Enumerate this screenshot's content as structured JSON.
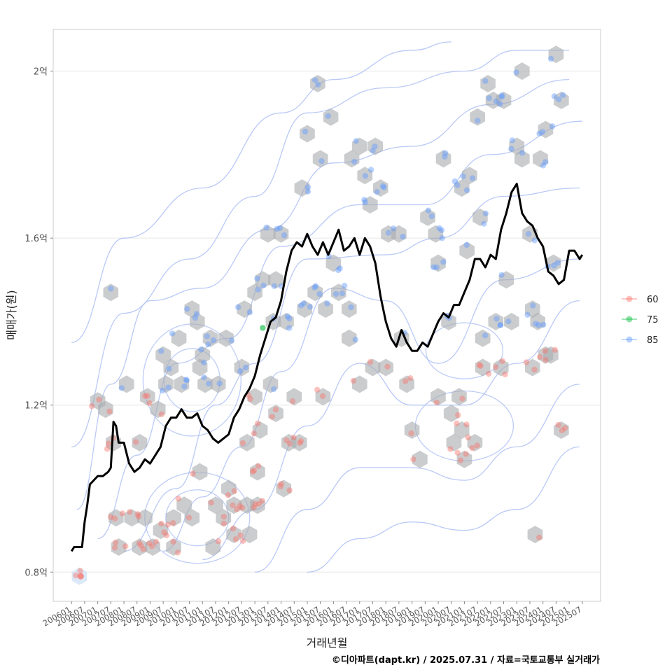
{
  "chart_data": {
    "type": "scatter",
    "title": "",
    "xlabel": "거래년월",
    "ylabel": "매매가(원)",
    "caption": "©디아파트(dapt.kr) / 2025.07.31 / 자료=국토교통부 실거래가",
    "x_range": [
      2005.3,
      2026.2
    ],
    "ylim": [
      0.73,
      2.1
    ],
    "y_ticks": [
      {
        "value": 0.8,
        "label": "0.8억"
      },
      {
        "value": 1.2,
        "label": "1.2억"
      },
      {
        "value": 1.6,
        "label": "1.6억"
      },
      {
        "value": 2.0,
        "label": "2억"
      }
    ],
    "x_ticks": [
      "200601",
      "200607",
      "200701",
      "200707",
      "200801",
      "200807",
      "200901",
      "200907",
      "201001",
      "201007",
      "201101",
      "201107",
      "201201",
      "201207",
      "201301",
      "201307",
      "201401",
      "201407",
      "201501",
      "201507",
      "201601",
      "201607",
      "201701",
      "201707",
      "201801",
      "201807",
      "201901",
      "201907",
      "202001",
      "202007",
      "202101",
      "202107",
      "202201",
      "202207",
      "202301",
      "202307",
      "202401",
      "202407",
      "202501",
      "202507"
    ],
    "legend": {
      "position": "right",
      "items": [
        {
          "label": "60",
          "color": "#F8766D"
        },
        {
          "label": "75",
          "color": "#00BA38"
        },
        {
          "label": "85",
          "color": "#619CFF"
        }
      ]
    },
    "trend_line": {
      "name": "moving average",
      "color": "#000000",
      "x": [
        2006.0,
        2006.1,
        2006.4,
        2006.5,
        2006.6,
        2006.7,
        2006.85,
        2007.0,
        2007.2,
        2007.4,
        2007.5,
        2007.6,
        2007.7,
        2007.8,
        2008.0,
        2008.2,
        2008.4,
        2008.6,
        2008.8,
        2009.0,
        2009.2,
        2009.4,
        2009.6,
        2009.8,
        2010.0,
        2010.2,
        2010.4,
        2010.6,
        2010.8,
        2011.0,
        2011.2,
        2011.4,
        2011.6,
        2011.8,
        2012.0,
        2012.2,
        2012.4,
        2012.6,
        2012.8,
        2013.0,
        2013.2,
        2013.4,
        2013.6,
        2013.8,
        2014.0,
        2014.2,
        2014.4,
        2014.6,
        2014.8,
        2015.0,
        2015.2,
        2015.4,
        2015.6,
        2015.8,
        2016.0,
        2016.2,
        2016.4,
        2016.6,
        2016.8,
        2017.0,
        2017.2,
        2017.4,
        2017.6,
        2017.8,
        2018.0,
        2018.2,
        2018.4,
        2018.6,
        2018.8,
        2019.0,
        2019.2,
        2019.4,
        2019.6,
        2019.8,
        2020.0,
        2020.2,
        2020.4,
        2020.6,
        2020.8,
        2021.0,
        2021.2,
        2021.4,
        2021.6,
        2021.8,
        2022.0,
        2022.2,
        2022.4,
        2022.6,
        2022.8,
        2023.0,
        2023.2,
        2023.4,
        2023.6,
        2023.8,
        2024.0,
        2024.2,
        2024.4,
        2024.6,
        2024.8,
        2025.0,
        2025.2,
        2025.4,
        2025.5
      ],
      "y": [
        0.85,
        0.86,
        0.86,
        0.92,
        0.96,
        1.01,
        1.02,
        1.03,
        1.03,
        1.04,
        1.05,
        1.16,
        1.15,
        1.11,
        1.11,
        1.06,
        1.04,
        1.05,
        1.07,
        1.06,
        1.08,
        1.1,
        1.15,
        1.17,
        1.17,
        1.19,
        1.17,
        1.17,
        1.18,
        1.15,
        1.14,
        1.12,
        1.11,
        1.12,
        1.13,
        1.17,
        1.19,
        1.22,
        1.24,
        1.27,
        1.32,
        1.36,
        1.4,
        1.41,
        1.45,
        1.52,
        1.57,
        1.59,
        1.58,
        1.61,
        1.58,
        1.56,
        1.59,
        1.56,
        1.59,
        1.62,
        1.57,
        1.58,
        1.6,
        1.56,
        1.6,
        1.58,
        1.54,
        1.46,
        1.4,
        1.36,
        1.34,
        1.38,
        1.35,
        1.33,
        1.33,
        1.35,
        1.34,
        1.37,
        1.4,
        1.42,
        1.41,
        1.44,
        1.44,
        1.47,
        1.5,
        1.55,
        1.55,
        1.53,
        1.56,
        1.55,
        1.62,
        1.66,
        1.71,
        1.73,
        1.66,
        1.64,
        1.63,
        1.6,
        1.58,
        1.52,
        1.51,
        1.49,
        1.5,
        1.57,
        1.57,
        1.55,
        1.56
      ]
    },
    "hexbin_centers": [
      [
        2006.3,
        0.79
      ],
      [
        2007.0,
        1.21
      ],
      [
        2007.3,
        1.19
      ],
      [
        2007.5,
        1.47
      ],
      [
        2007.6,
        1.11
      ],
      [
        2007.7,
        0.93
      ],
      [
        2007.8,
        0.86
      ],
      [
        2008.1,
        1.25
      ],
      [
        2008.3,
        0.93
      ],
      [
        2008.6,
        0.86
      ],
      [
        2008.6,
        1.11
      ],
      [
        2008.8,
        0.93
      ],
      [
        2008.9,
        1.22
      ],
      [
        2009.1,
        0.86
      ],
      [
        2009.3,
        1.19
      ],
      [
        2009.4,
        0.9
      ],
      [
        2009.5,
        1.32
      ],
      [
        2009.6,
        1.25
      ],
      [
        2009.8,
        1.29
      ],
      [
        2009.9,
        0.93
      ],
      [
        2009.9,
        0.86
      ],
      [
        2010.1,
        1.36
      ],
      [
        2010.2,
        1.25
      ],
      [
        2010.3,
        0.96
      ],
      [
        2010.6,
        1.43
      ],
      [
        2010.6,
        0.93
      ],
      [
        2010.8,
        1.4
      ],
      [
        2010.9,
        1.29
      ],
      [
        2010.9,
        1.04
      ],
      [
        2011.0,
        1.32
      ],
      [
        2011.1,
        1.25
      ],
      [
        2011.3,
        1.36
      ],
      [
        2011.4,
        0.86
      ],
      [
        2011.5,
        0.96
      ],
      [
        2011.6,
        1.25
      ],
      [
        2011.8,
        0.93
      ],
      [
        2011.9,
        1.36
      ],
      [
        2012.0,
        1.0
      ],
      [
        2012.2,
        0.96
      ],
      [
        2012.2,
        0.89
      ],
      [
        2012.5,
        1.29
      ],
      [
        2012.6,
        1.43
      ],
      [
        2012.7,
        0.96
      ],
      [
        2012.7,
        1.11
      ],
      [
        2012.8,
        0.89
      ],
      [
        2013.0,
        1.22
      ],
      [
        2013.0,
        1.47
      ],
      [
        2013.1,
        0.96
      ],
      [
        2013.1,
        1.04
      ],
      [
        2013.2,
        1.14
      ],
      [
        2013.3,
        1.5
      ],
      [
        2013.5,
        1.61
      ],
      [
        2013.6,
        1.25
      ],
      [
        2013.7,
        1.4
      ],
      [
        2013.8,
        1.18
      ],
      [
        2013.8,
        1.5
      ],
      [
        2014.0,
        1.61
      ],
      [
        2014.1,
        1.0
      ],
      [
        2014.2,
        1.4
      ],
      [
        2014.3,
        1.11
      ],
      [
        2014.5,
        1.22
      ],
      [
        2014.7,
        1.11
      ],
      [
        2014.8,
        1.72
      ],
      [
        2014.9,
        1.43
      ],
      [
        2015.0,
        1.85
      ],
      [
        2015.3,
        1.47
      ],
      [
        2015.4,
        1.97
      ],
      [
        2015.5,
        1.79
      ],
      [
        2015.6,
        1.22
      ],
      [
        2015.7,
        1.43
      ],
      [
        2015.9,
        1.89
      ],
      [
        2016.0,
        1.54
      ],
      [
        2016.2,
        1.47
      ],
      [
        2016.6,
        1.43
      ],
      [
        2016.6,
        1.36
      ],
      [
        2016.7,
        1.79
      ],
      [
        2017.0,
        1.82
      ],
      [
        2017.0,
        1.25
      ],
      [
        2017.2,
        1.75
      ],
      [
        2017.4,
        1.68
      ],
      [
        2017.5,
        1.29
      ],
      [
        2017.6,
        1.82
      ],
      [
        2017.8,
        1.72
      ],
      [
        2018.0,
        1.29
      ],
      [
        2018.1,
        1.61
      ],
      [
        2018.5,
        1.61
      ],
      [
        2018.6,
        1.36
      ],
      [
        2018.8,
        1.25
      ],
      [
        2019.0,
        1.14
      ],
      [
        2019.3,
        1.07
      ],
      [
        2019.6,
        1.65
      ],
      [
        2019.9,
        1.61
      ],
      [
        2020.0,
        1.22
      ],
      [
        2020.0,
        1.54
      ],
      [
        2020.2,
        1.79
      ],
      [
        2020.4,
        1.4
      ],
      [
        2020.5,
        1.18
      ],
      [
        2020.6,
        1.11
      ],
      [
        2020.8,
        1.22
      ],
      [
        2020.9,
        1.14
      ],
      [
        2020.9,
        1.72
      ],
      [
        2021.0,
        1.07
      ],
      [
        2021.1,
        1.57
      ],
      [
        2021.2,
        1.75
      ],
      [
        2021.4,
        1.11
      ],
      [
        2021.5,
        1.89
      ],
      [
        2021.6,
        1.65
      ],
      [
        2021.7,
        1.36
      ],
      [
        2021.7,
        1.29
      ],
      [
        2021.9,
        1.97
      ],
      [
        2022.1,
        1.93
      ],
      [
        2022.2,
        1.4
      ],
      [
        2022.4,
        1.29
      ],
      [
        2022.5,
        1.93
      ],
      [
        2022.6,
        1.5
      ],
      [
        2022.8,
        1.4
      ],
      [
        2023.0,
        1.82
      ],
      [
        2023.2,
        2.0
      ],
      [
        2023.2,
        1.79
      ],
      [
        2023.5,
        1.61
      ],
      [
        2023.6,
        1.43
      ],
      [
        2023.6,
        1.29
      ],
      [
        2023.7,
        0.89
      ],
      [
        2023.8,
        1.4
      ],
      [
        2023.9,
        1.79
      ],
      [
        2024.1,
        1.32
      ],
      [
        2024.1,
        1.86
      ],
      [
        2024.3,
        1.32
      ],
      [
        2024.4,
        1.54
      ],
      [
        2024.5,
        2.04
      ],
      [
        2024.7,
        1.93
      ],
      [
        2024.7,
        1.14
      ]
    ],
    "density_contours": "2D density contour lines (light blue)"
  }
}
